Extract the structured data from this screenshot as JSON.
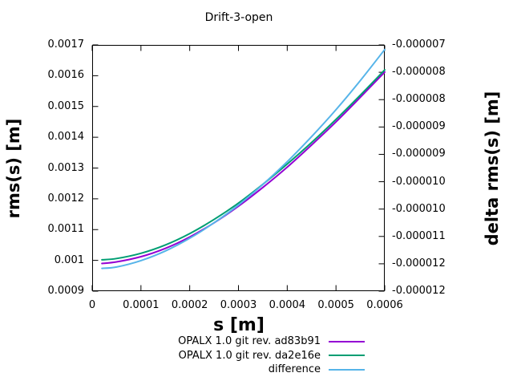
{
  "chart_data": {
    "type": "line",
    "title": "Drift-3-open",
    "xlabel": "s [m]",
    "ylabel": "rms(s) [m]",
    "y2label": "delta rms(s) [m]",
    "x_range": [
      0,
      0.0006
    ],
    "y_range": [
      0.0009,
      0.0017
    ],
    "y2_range": [
      -1.22e-05,
      -6.8e-06
    ],
    "grid": false,
    "legend_position": "below-right",
    "border_color": "#000000",
    "x_ticks": {
      "values": [
        0,
        0.0001,
        0.0002,
        0.0003,
        0.0004,
        0.0005,
        0.0006
      ],
      "labels": [
        "0",
        "0.0001",
        "0.0002",
        "0.0003",
        "0.0004",
        "0.0005",
        "0.0006"
      ]
    },
    "y_ticks": {
      "values": [
        0.0009,
        0.001,
        0.0011,
        0.0012,
        0.0013,
        0.0014,
        0.0015,
        0.0016,
        0.0017
      ],
      "labels": [
        "0.0009",
        "0.001",
        "0.0011",
        "0.0012",
        "0.0013",
        "0.0014",
        "0.0015",
        "0.0016",
        "0.0017"
      ]
    },
    "y2_ticks": {
      "labels_top_to_bottom": [
        "-0.000007",
        "-0.000008",
        "-0.000008",
        "-0.000009",
        "-0.000009",
        "-0.000010",
        "-0.000010",
        "-0.000011",
        "-0.000012",
        "-0.000012"
      ]
    },
    "x": [
      2e-05,
      5e-05,
      0.0001,
      0.00015,
      0.0002,
      0.00025,
      0.0003,
      0.00035,
      0.0004,
      0.00045,
      0.0005,
      0.00055,
      0.0006
    ],
    "series": [
      {
        "name": "OPALX 1.0 git rev. ad83b91",
        "color": "#9400d3",
        "axis": "y1",
        "values": [
          0.00099,
          0.000995,
          0.001012,
          0.001039,
          0.001076,
          0.001122,
          0.001176,
          0.001237,
          0.001303,
          0.001375,
          0.00145,
          0.00153,
          0.001612
        ]
      },
      {
        "name": "OPALX 1.0 git rev. da2e16e",
        "color": "#009e73",
        "axis": "y1",
        "values": [
          0.001002,
          0.001006,
          0.001023,
          0.00105,
          0.001087,
          0.001133,
          0.001186,
          0.001247,
          0.001313,
          0.001383,
          0.001458,
          0.001537,
          0.001619
        ]
      },
      {
        "name": "difference",
        "color": "#56b4e9",
        "axis": "y2",
        "values": [
          -1.17e-05,
          -1.167e-05,
          -1.153e-05,
          -1.132e-05,
          -1.104e-05,
          -1.07e-05,
          -1.031e-05,
          -9.86e-06,
          -9.36e-06,
          -8.81e-06,
          -8.22e-06,
          -7.58e-06,
          -6.9e-06
        ]
      }
    ]
  }
}
